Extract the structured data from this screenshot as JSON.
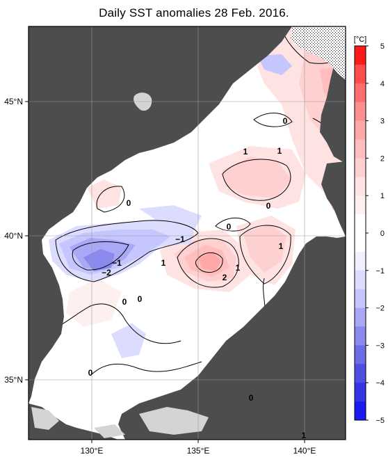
{
  "title": "Daily SST anomalies 28 Feb. 2016.",
  "map": {
    "lon_labels": [
      "130°E",
      "135°E",
      "140°E"
    ],
    "lat_labels": [
      "45°N",
      "40°N",
      "35°N"
    ],
    "contour_labels": [
      {
        "text": "0"
      },
      {
        "text": "1"
      },
      {
        "text": "1"
      },
      {
        "text": "0"
      },
      {
        "text": "0"
      },
      {
        "text": "0"
      },
      {
        "text": "1"
      },
      {
        "text": "−1"
      },
      {
        "text": "−1"
      },
      {
        "text": "−2"
      },
      {
        "text": "1"
      },
      {
        "text": "1"
      },
      {
        "text": "2"
      },
      {
        "text": "0"
      },
      {
        "text": "0"
      },
      {
        "text": "0"
      },
      {
        "text": "0"
      },
      {
        "text": "1"
      }
    ]
  },
  "colorbar": {
    "unit": "[°C]",
    "ticks": [
      "5",
      "4",
      "3",
      "2",
      "1",
      "0",
      "−1",
      "−2",
      "−3",
      "−4",
      "−5"
    ],
    "colors": {
      "pos": [
        "#ff1a1a",
        "#ff4d4d",
        "#ff6f6f",
        "#ff8f8f",
        "#ffa8a8",
        "#ffbdbd",
        "#ffd0d0",
        "#ffe2e2",
        "#fff0f0",
        "#ffffff"
      ],
      "neg": [
        "#ffffff",
        "#f0f0ff",
        "#dcdcff",
        "#c6c6ff",
        "#a8a8f6",
        "#8a8aee",
        "#6c6ce6",
        "#4e4ee0",
        "#3535e6",
        "#1a1af2"
      ]
    }
  },
  "colors": {
    "land": "#4d4d4d",
    "missing_land": "#d4d4d4"
  }
}
